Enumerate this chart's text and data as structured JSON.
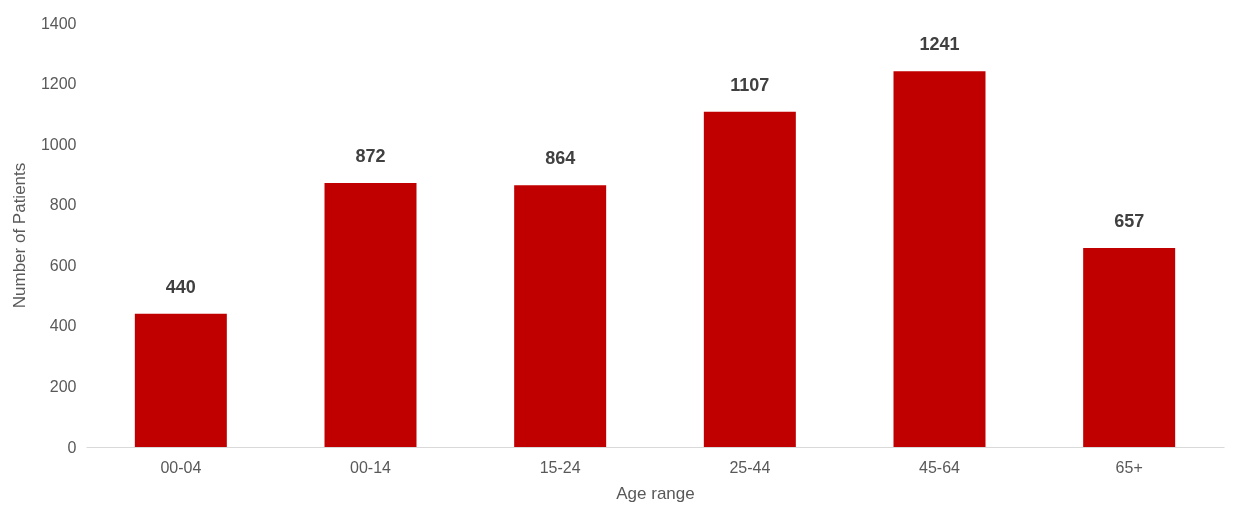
{
  "chart_data": {
    "type": "bar",
    "xlabel": "Age range",
    "ylabel": "Number of Patients",
    "categories": [
      "00-04",
      "00-14",
      "15-24",
      "25-44",
      "45-64",
      "65+"
    ],
    "values": [
      440,
      872,
      864,
      1107,
      1241,
      657
    ],
    "color": "#c00000",
    "ylim": [
      0,
      1400
    ],
    "yticks": [
      0,
      200,
      400,
      600,
      800,
      1000,
      1200,
      1400
    ],
    "grid": false,
    "data_labels": true
  }
}
